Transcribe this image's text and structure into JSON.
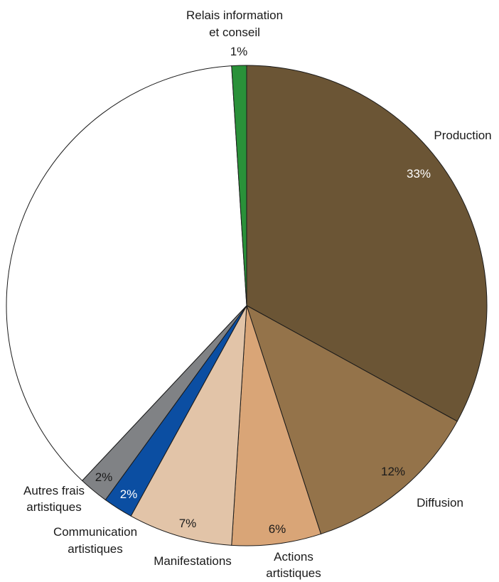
{
  "chart_data": {
    "type": "pie",
    "title": "",
    "slices": [
      {
        "name_lines": [
          "Production"
        ],
        "value": 33,
        "value_label": "33%",
        "color": "#6b5535",
        "text_color": "#ffffff"
      },
      {
        "name_lines": [
          "Diffusion"
        ],
        "value": 12,
        "value_label": "12%",
        "color": "#94734a",
        "text_color": "#1a1a1a"
      },
      {
        "name_lines": [
          "Actions",
          "artistiques"
        ],
        "value": 6,
        "value_label": "6%",
        "color": "#d9a577",
        "text_color": "#1a1a1a"
      },
      {
        "name_lines": [
          "Manifestations"
        ],
        "value": 7,
        "value_label": "7%",
        "color": "#e2c4a8",
        "text_color": "#1a1a1a"
      },
      {
        "name_lines": [
          "Communication",
          "artistiques"
        ],
        "value": 2,
        "value_label": "2%",
        "color": "#0b4ea2",
        "text_color": "#ffffff"
      },
      {
        "name_lines": [
          "Autres frais",
          "artistiques"
        ],
        "value": 2,
        "value_label": "2%",
        "color": "#808285",
        "text_color": "#1a1a1a"
      },
      {
        "name_lines": [],
        "value": 37,
        "value_label": "",
        "color": "#ffffff",
        "text_color": "#1a1a1a"
      },
      {
        "name_lines": [
          "Relais information",
          "et conseil"
        ],
        "value": 1,
        "value_label": "1%",
        "color": "#2a9139",
        "text_color": "#1a1a1a"
      }
    ]
  }
}
